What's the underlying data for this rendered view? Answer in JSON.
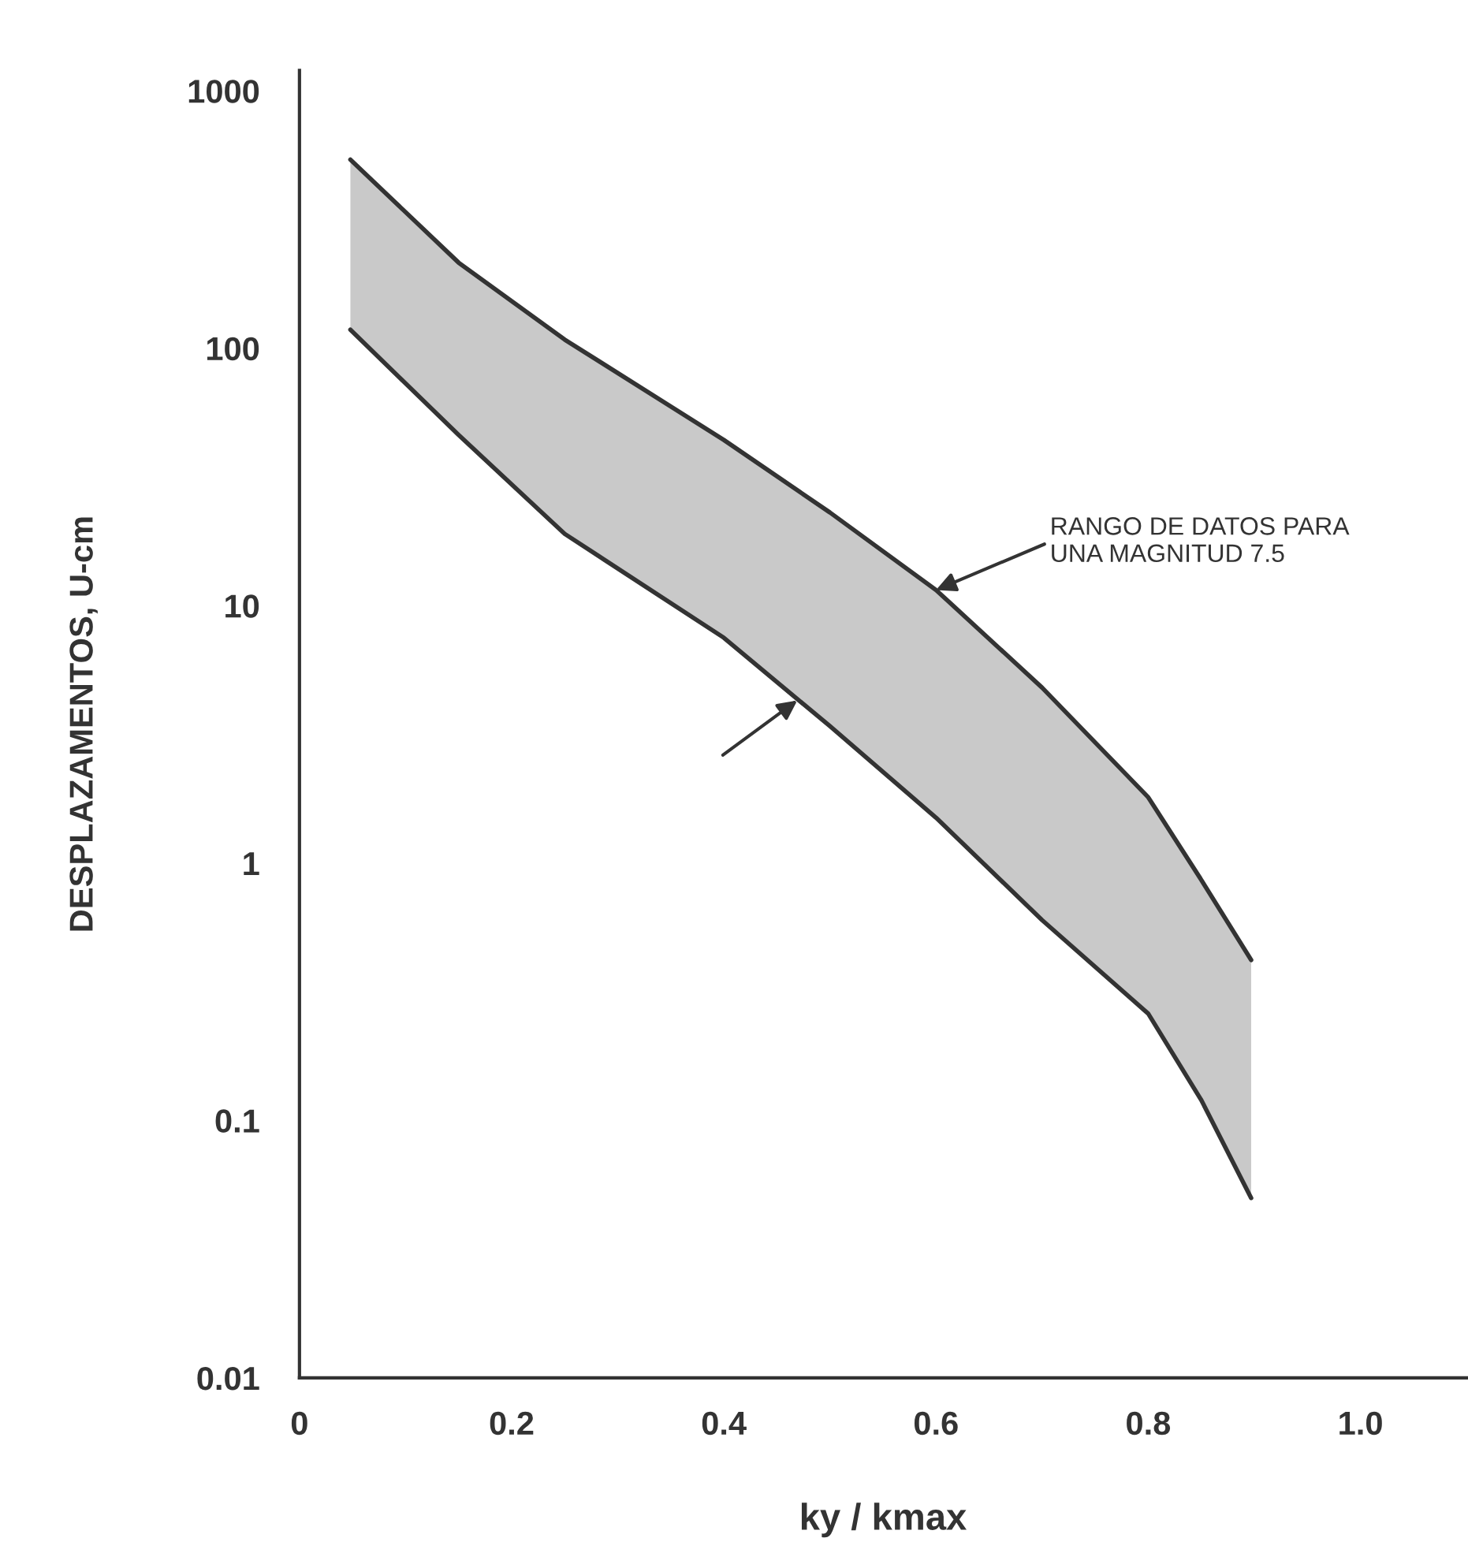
{
  "chart_data": {
    "type": "line",
    "xlabel": "ky / kmax",
    "ylabel": "DESPLAZAMENTOS, U-cm",
    "log": "y",
    "xlim": [
      0,
      1.1
    ],
    "xticks": [
      0,
      0.2,
      0.4,
      0.6,
      0.8,
      {
        "value": 1.0,
        "label": "1.0"
      }
    ],
    "ylim": [
      0.01,
      1200
    ],
    "yticks": [
      0.01,
      0.1,
      1,
      10,
      100,
      1000
    ],
    "grid": false,
    "series": [
      {
        "color": "#333333",
        "x": [
          0.048,
          0.15,
          0.25,
          0.4,
          0.5,
          0.6,
          0.7,
          0.8,
          0.85,
          0.897
        ],
        "values": [
          540,
          215,
          108,
          44,
          23,
          11.5,
          4.8,
          1.8,
          0.86,
          0.42
        ],
        "lower": [
          118,
          46,
          19,
          7.5,
          3.4,
          1.5,
          0.6,
          0.26,
          0.12,
          0.05
        ],
        "upper": [
          540,
          215,
          108,
          44,
          23,
          11.5,
          4.8,
          1.8,
          0.86,
          0.42
        ]
      },
      {
        "color": "#333333",
        "x": [
          0.048,
          0.15,
          0.25,
          0.4,
          0.5,
          0.6,
          0.7,
          0.8,
          0.85,
          0.897
        ],
        "values": [
          118,
          46,
          19,
          7.5,
          3.4,
          1.5,
          0.6,
          0.26,
          0.12,
          0.05
        ]
      }
    ],
    "annotations": [
      {
        "text": "RANGO DE DATOS PARA\nUNA MAGNITUD 7.5",
        "x": 0.6,
        "y": 11.5
      }
    ]
  }
}
